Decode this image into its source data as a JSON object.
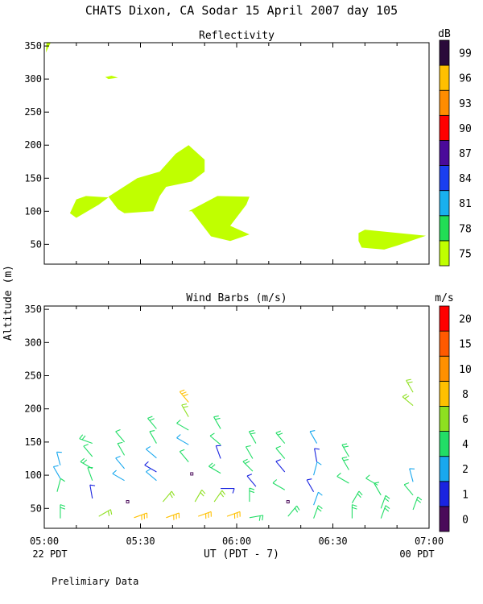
{
  "title": "CHATS Dixon, CA  Sodar  15 April 2007  day 105",
  "shared_ylabel": "Altitude (m)",
  "xaxis": {
    "label": "UT  (PDT - 7)",
    "ticks": [
      "05:00",
      "05:30",
      "06:00",
      "06:30",
      "07:00"
    ],
    "left_note": "22 PDT",
    "right_note": "00 PDT"
  },
  "footer": "Prelimiary Data",
  "colors": {
    "reflectivity_fill": "#c0ff00",
    "refl_levels": [
      "#c0ff00",
      "#22dd55",
      "#19b0ee",
      "#1a3ff0",
      "#4a0a9a",
      "#ff0000",
      "#ff8c00",
      "#ffc000",
      "#2a0a3a"
    ],
    "wind_levels": [
      "#4a0a5a",
      "#1a24e0",
      "#19a8ee",
      "#22dd66",
      "#8ee020",
      "#ffc000",
      "#ff9000",
      "#ff5a00",
      "#ff0000"
    ]
  },
  "chart_data": [
    {
      "type": "heatmap",
      "title": "Reflectivity",
      "colorbar_unit": "dB",
      "colorbar_ticks": [
        "99",
        "96",
        "93",
        "90",
        "87",
        "84",
        "81",
        "78",
        "75"
      ],
      "xlim": [
        300,
        420
      ],
      "ylim": [
        20,
        355
      ],
      "yticks": [
        "350",
        "300",
        "250",
        "200",
        "150",
        "100",
        "50"
      ],
      "regions": [
        {
          "level": 75,
          "points": [
            [
              300.5,
              340
            ],
            [
              302,
              355
            ],
            [
              300.7,
              355
            ]
          ]
        },
        {
          "level": 75,
          "points": [
            [
              319,
              303
            ],
            [
              321,
              305
            ],
            [
              323,
              302
            ],
            [
              320,
              300
            ]
          ]
        },
        {
          "level": 75,
          "points": [
            [
              308,
              97
            ],
            [
              310,
              118
            ],
            [
              313,
              123
            ],
            [
              320,
              121
            ],
            [
              317,
              110
            ],
            [
              310,
              90
            ]
          ]
        },
        {
          "level": 75,
          "points": [
            [
              320,
              122
            ],
            [
              329,
              150
            ],
            [
              336,
              160
            ],
            [
              341,
              187
            ],
            [
              345,
              200
            ],
            [
              350,
              178
            ],
            [
              350,
              160
            ],
            [
              346,
              145
            ],
            [
              338,
              137
            ],
            [
              336,
              123
            ],
            [
              334,
              100
            ],
            [
              325,
              97
            ],
            [
              323,
              103
            ]
          ]
        },
        {
          "level": 75,
          "points": [
            [
              345,
              100
            ],
            [
              354,
              123
            ],
            [
              364,
              122
            ],
            [
              363,
              110
            ],
            [
              358,
              78
            ],
            [
              364,
              65
            ],
            [
              358,
              55
            ],
            [
              352,
              62
            ],
            [
              346,
              100
            ]
          ]
        },
        {
          "level": 75,
          "points": [
            [
              398,
              67
            ],
            [
              400,
              72
            ],
            [
              419,
              63
            ],
            [
              410,
              48
            ],
            [
              406,
              42
            ],
            [
              399,
              45
            ],
            [
              398,
              55
            ]
          ]
        }
      ]
    },
    {
      "type": "scatter",
      "title": "Wind Barbs (m/s)",
      "colorbar_unit": "m/s",
      "colorbar_ticks": [
        "20",
        "15",
        "10",
        "8",
        "6",
        "4",
        "2",
        "1",
        "0"
      ],
      "xlim": [
        300,
        420
      ],
      "ylim": [
        20,
        355
      ],
      "yticks": [
        "350",
        "300",
        "250",
        "200",
        "150",
        "100",
        "50"
      ],
      "barbs": [
        [
          305,
          115,
          345,
          2
        ],
        [
          305,
          95,
          330,
          2
        ],
        [
          304,
          75,
          15,
          3
        ],
        [
          305,
          35,
          0,
          4
        ],
        [
          315,
          148,
          290,
          4
        ],
        [
          315,
          128,
          320,
          3
        ],
        [
          315,
          110,
          300,
          4
        ],
        [
          315,
          92,
          340,
          3
        ],
        [
          315,
          65,
          350,
          1
        ],
        [
          317,
          38,
          60,
          6
        ],
        [
          325,
          150,
          320,
          3
        ],
        [
          325,
          130,
          330,
          3
        ],
        [
          325,
          110,
          320,
          2
        ],
        [
          325,
          92,
          300,
          2
        ],
        [
          326,
          60,
          0,
          0
        ],
        [
          328,
          36,
          70,
          8
        ],
        [
          335,
          170,
          320,
          4
        ],
        [
          335,
          148,
          330,
          3
        ],
        [
          335,
          126,
          310,
          2
        ],
        [
          335,
          105,
          300,
          1
        ],
        [
          335,
          92,
          310,
          2
        ],
        [
          337,
          60,
          40,
          6
        ],
        [
          338,
          36,
          70,
          8
        ],
        [
          345,
          210,
          320,
          8
        ],
        [
          345,
          188,
          330,
          5
        ],
        [
          345,
          168,
          300,
          3
        ],
        [
          345,
          146,
          300,
          2
        ],
        [
          345,
          120,
          320,
          3
        ],
        [
          346,
          102,
          0,
          0
        ],
        [
          347,
          60,
          30,
          6
        ],
        [
          348,
          38,
          70,
          8
        ],
        [
          355,
          170,
          330,
          4
        ],
        [
          355,
          146,
          310,
          3
        ],
        [
          355,
          125,
          340,
          1
        ],
        [
          355,
          103,
          300,
          4
        ],
        [
          355,
          80,
          90,
          1
        ],
        [
          353,
          60,
          35,
          5
        ],
        [
          357,
          38,
          70,
          8
        ],
        [
          366,
          148,
          330,
          4
        ],
        [
          365,
          125,
          330,
          3
        ],
        [
          365,
          106,
          315,
          4
        ],
        [
          366,
          83,
          320,
          1
        ],
        [
          364,
          60,
          0,
          4
        ],
        [
          364,
          36,
          80,
          4
        ],
        [
          375,
          148,
          320,
          4
        ],
        [
          375,
          125,
          320,
          3
        ],
        [
          375,
          105,
          320,
          1
        ],
        [
          375,
          78,
          300,
          3
        ],
        [
          376,
          60,
          0,
          0
        ],
        [
          376,
          38,
          40,
          4
        ],
        [
          385,
          148,
          330,
          2
        ],
        [
          385,
          120,
          350,
          1
        ],
        [
          384,
          100,
          15,
          2
        ],
        [
          384,
          75,
          330,
          1
        ],
        [
          384,
          55,
          20,
          2
        ],
        [
          384,
          35,
          20,
          4
        ],
        [
          395,
          128,
          330,
          4
        ],
        [
          395,
          108,
          330,
          4
        ],
        [
          395,
          88,
          300,
          3
        ],
        [
          396,
          58,
          30,
          4
        ],
        [
          396,
          35,
          0,
          4
        ],
        [
          404,
          85,
          300,
          3
        ],
        [
          405,
          70,
          330,
          3
        ],
        [
          405,
          50,
          20,
          4
        ],
        [
          405,
          35,
          20,
          4
        ],
        [
          415,
          225,
          330,
          6
        ],
        [
          415,
          205,
          310,
          6
        ],
        [
          415,
          90,
          345,
          2
        ],
        [
          415,
          70,
          320,
          3
        ],
        [
          415,
          48,
          20,
          4
        ]
      ]
    }
  ]
}
